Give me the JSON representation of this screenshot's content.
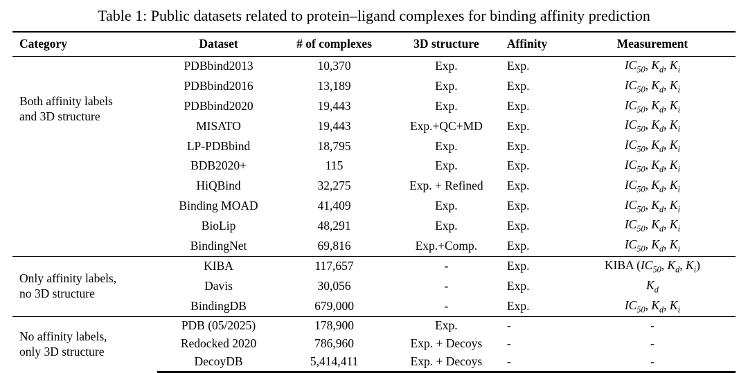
{
  "page": {
    "background": "#ffffff",
    "text_color": "#000000"
  },
  "caption": "Table 1: Public datasets related to protein–ligand complexes for binding affinity prediction",
  "table": {
    "headers": [
      "Category",
      "Dataset",
      "# of complexes",
      "3D structure",
      "Affinity",
      "Measurement"
    ],
    "groups": [
      {
        "category": [
          "Both affinity labels",
          "and 3D structure"
        ],
        "rows": [
          {
            "dataset": "PDBbind2013",
            "complexes": "10,370",
            "structure": "Exp.",
            "affinity": "Exp.",
            "measurement": "$IC_{50}$, $K_{d}$, $K_{i}$"
          },
          {
            "dataset": "PDBbind2016",
            "complexes": "13,189",
            "structure": "Exp.",
            "affinity": "Exp.",
            "measurement": "$IC_{50}$, $K_{d}$, $K_{i}$"
          },
          {
            "dataset": "PDBbind2020",
            "complexes": "19,443",
            "structure": "Exp.",
            "affinity": "Exp.",
            "measurement": "$IC_{50}$, $K_{d}$, $K_{i}$"
          },
          {
            "dataset": "MISATO",
            "complexes": "19,443",
            "structure": "Exp.+QC+MD",
            "affinity": "Exp.",
            "measurement": "$IC_{50}$, $K_{d}$, $K_{i}$"
          },
          {
            "dataset": "LP-PDBbind",
            "complexes": "18,795",
            "structure": "Exp.",
            "affinity": "Exp.",
            "measurement": "$IC_{50}$, $K_{d}$, $K_{i}$"
          },
          {
            "dataset": "BDB2020+",
            "complexes": "115",
            "structure": "Exp.",
            "affinity": "Exp.",
            "measurement": "$IC_{50}$, $K_{d}$, $K_{i}$"
          },
          {
            "dataset": "HiQBind",
            "complexes": "32,275",
            "structure": "Exp. + Refined",
            "affinity": "Exp.",
            "measurement": "$IC_{50}$, $K_{d}$, $K_{i}$"
          },
          {
            "dataset": "Binding MOAD",
            "complexes": "41,409",
            "structure": "Exp.",
            "affinity": "Exp.",
            "measurement": "$IC_{50}$, $K_{d}$, $K_{i}$"
          },
          {
            "dataset": "BioLip",
            "complexes": "48,291",
            "structure": "Exp.",
            "affinity": "Exp.",
            "measurement": "$IC_{50}$, $K_{d}$, $K_{i}$"
          },
          {
            "dataset": "BindingNet",
            "complexes": "69,816",
            "structure": "Exp.+Comp.",
            "affinity": "Exp.",
            "measurement": "$IC_{50}$, $K_{d}$, $K_{i}$"
          }
        ]
      },
      {
        "category": [
          "Only affinity labels,",
          "no 3D structure"
        ],
        "rows": [
          {
            "dataset": "KIBA",
            "complexes": "117,657",
            "structure": "-",
            "affinity": "Exp.",
            "measurement": "KIBA ($IC_{50}$, $K_{d}$, $K_{i}$)"
          },
          {
            "dataset": "Davis",
            "complexes": "30,056",
            "structure": "-",
            "affinity": "Exp.",
            "measurement": "$K_{d}$"
          },
          {
            "dataset": "BindingDB",
            "complexes": "679,000",
            "structure": "-",
            "affinity": "Exp.",
            "measurement": "$IC_{50}$, $K_{d}$, $K_{i}$"
          }
        ]
      },
      {
        "category": [
          "No affinity labels,",
          "only 3D structure"
        ],
        "rows": [
          {
            "dataset": "PDB (05/2025)",
            "complexes": "178,900",
            "structure": "Exp.",
            "affinity": "-",
            "measurement": "-"
          },
          {
            "dataset": "Redocked 2020",
            "complexes": "786,960",
            "structure": "Exp. + Decoys",
            "affinity": "-",
            "measurement": "-"
          },
          {
            "dataset": "DecoyDB",
            "complexes": "5,414,411",
            "structure": "Exp. + Decoys",
            "affinity": "-",
            "measurement": "-"
          }
        ]
      }
    ]
  }
}
